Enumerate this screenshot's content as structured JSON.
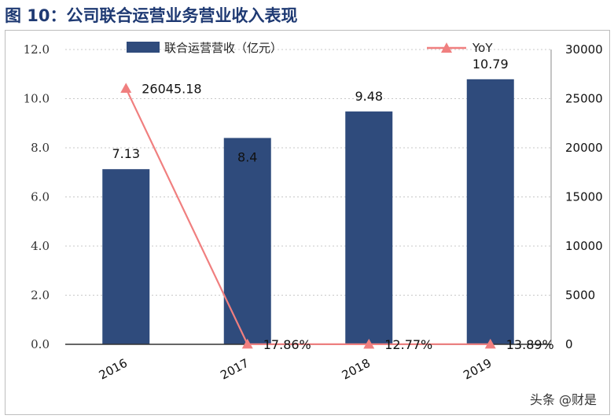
{
  "figure_title": "图 10：公司联合运营业务营业收入表现",
  "watermark": "头条 @财是",
  "colors": {
    "bar": "#2f4b7c",
    "line": "#f07f7f",
    "title": "#1f3a73",
    "grid": "#c8c8c8"
  },
  "chart_data": {
    "type": "bar",
    "categories": [
      "2016",
      "2017",
      "2018",
      "2019"
    ],
    "series": [
      {
        "name": "联合运营营收（亿元）",
        "type": "bar",
        "axis": "left",
        "values": [
          7.13,
          8.4,
          9.48,
          10.79
        ],
        "labels": [
          "7.13",
          "8.4",
          "9.48",
          "10.79"
        ]
      },
      {
        "name": "YoY",
        "type": "line",
        "axis": "right",
        "marker": "triangle",
        "values": [
          26045.18,
          17.86,
          12.77,
          13.89
        ],
        "labels": [
          "26045.18",
          "17.86%",
          "12.77%",
          "13.89%"
        ]
      }
    ],
    "y_left": {
      "lim": [
        0,
        12
      ],
      "ticks": [
        "0.0",
        "2.0",
        "4.0",
        "6.0",
        "8.0",
        "10.0",
        "12.0"
      ]
    },
    "y_right": {
      "lim": [
        0,
        30000
      ],
      "ticks": [
        "0",
        "5000",
        "10000",
        "15000",
        "20000",
        "25000",
        "30000"
      ]
    },
    "grid": true,
    "legend": "top"
  }
}
